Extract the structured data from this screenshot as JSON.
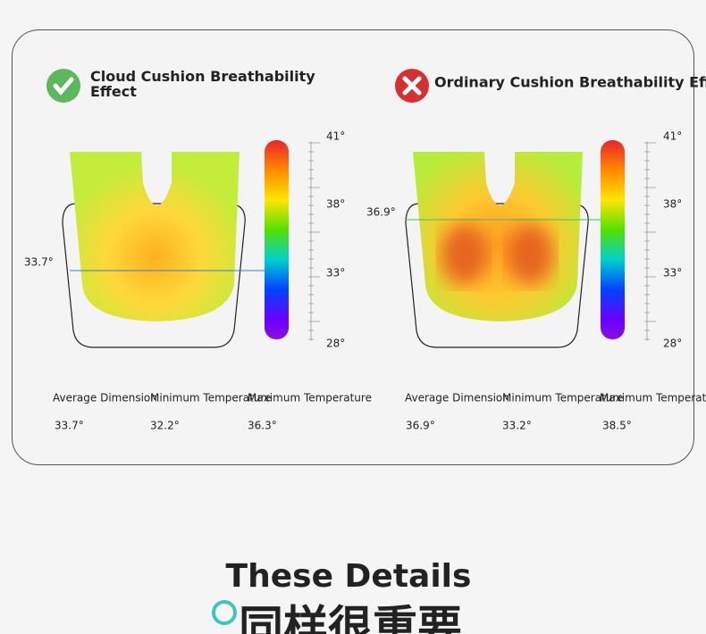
{
  "comparisons": [
    {
      "title": "Cloud Cushion Breathability Effect",
      "marker": "33.7°",
      "scale": [
        "41°",
        "38°",
        "33°",
        "28°"
      ],
      "stats": [
        {
          "label": "Average Dimension",
          "value": "33.7°"
        },
        {
          "label": "Minimum Temperature",
          "value": "32.2°"
        },
        {
          "label": "Maximum Temperature",
          "value": "36.3°"
        }
      ]
    },
    {
      "title": "Ordinary Cushion Breathability Effect",
      "marker": "36.9°",
      "scale": [
        "41°",
        "38°",
        "33°",
        "28°"
      ],
      "stats": [
        {
          "label": "Average Dimension",
          "value": "36.9°"
        },
        {
          "label": "Minimum Temperature",
          "value": "33.2°"
        },
        {
          "label": "Maximum Temperature",
          "value": "38.5°"
        }
      ]
    }
  ],
  "footer": {
    "heading": "These Details",
    "subheading": "同样很重要"
  }
}
